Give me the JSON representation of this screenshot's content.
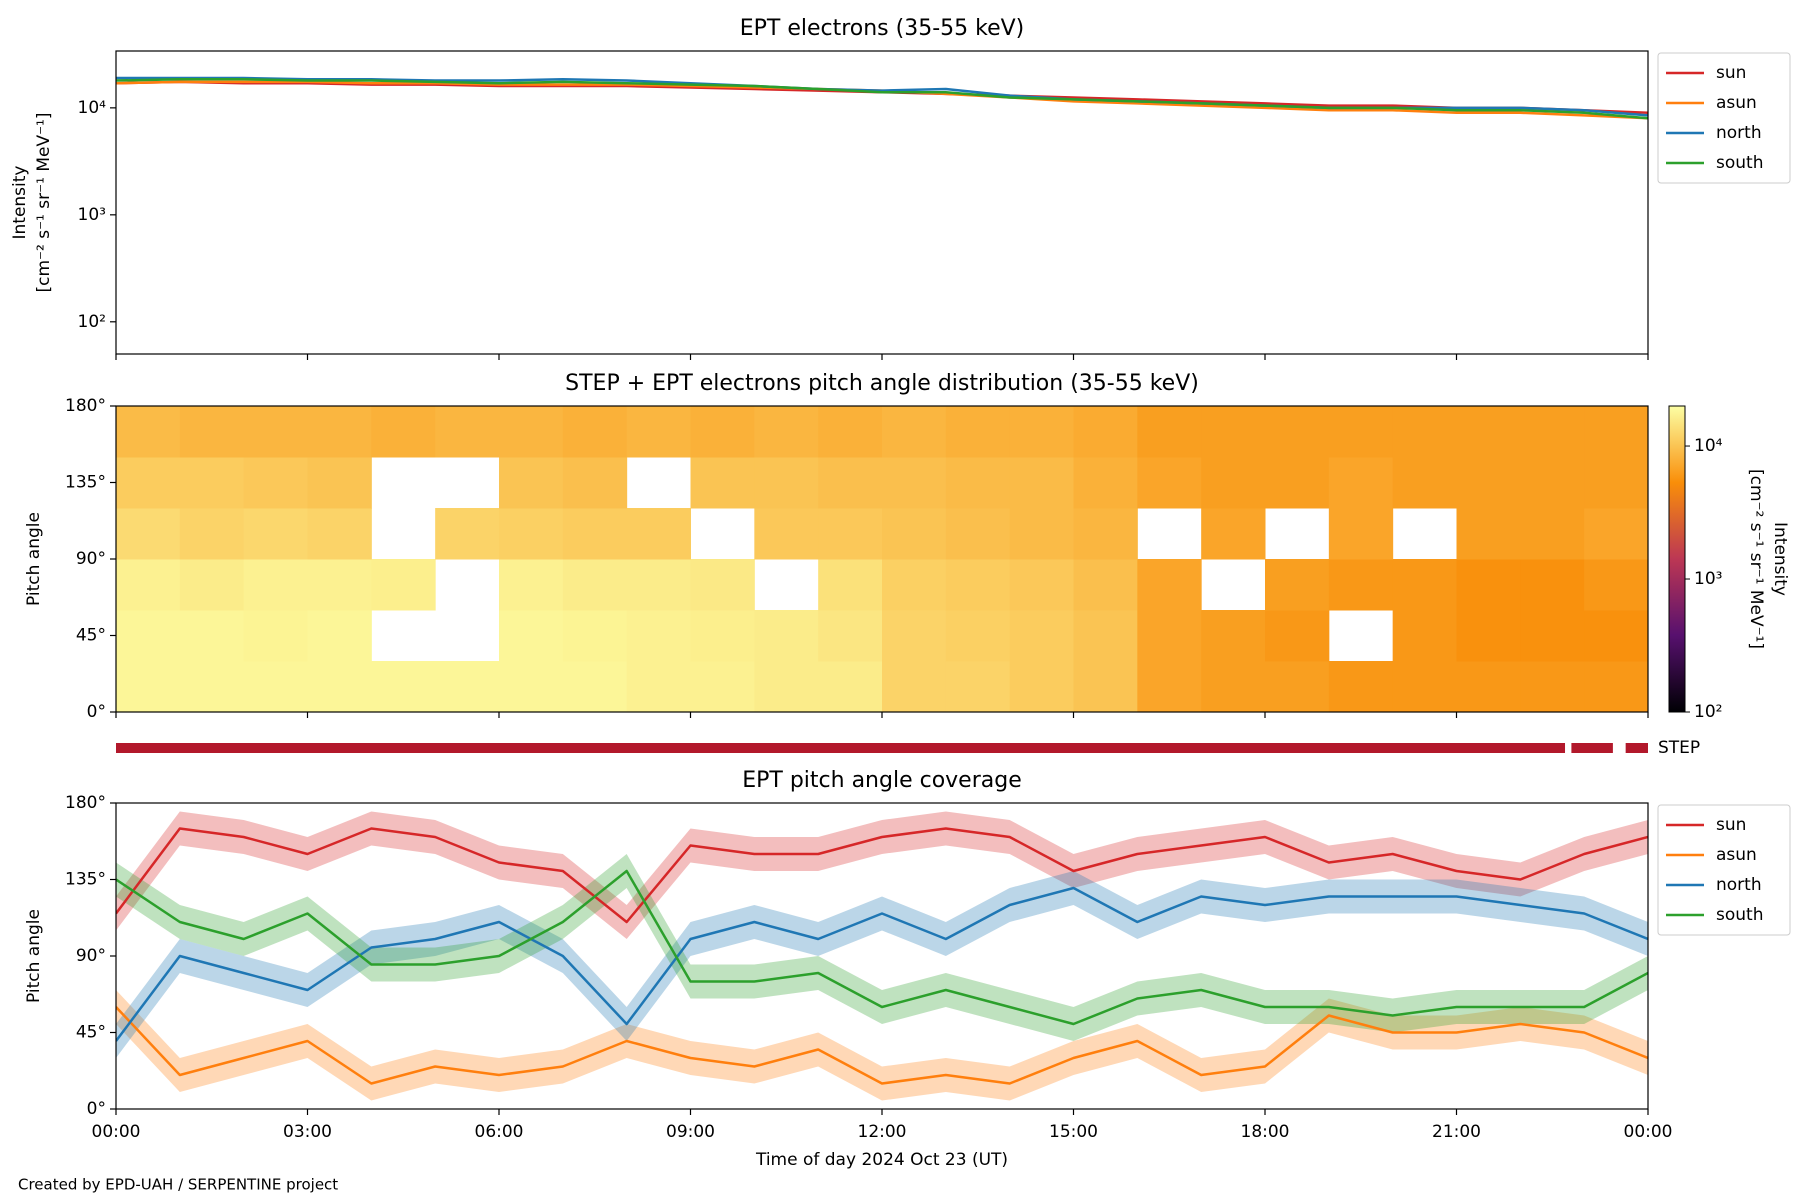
{
  "chart_data": [
    {
      "type": "line",
      "title": "EPT electrons (35-55 keV)",
      "ylabel": [
        "Intensity",
        "[cm⁻² s⁻¹ sr⁻¹ MeV⁻¹]"
      ],
      "log_y": true,
      "legend": "outside-right",
      "xlim": [
        0,
        24
      ],
      "xticks": [
        0,
        3,
        6,
        9,
        12,
        15,
        18,
        21,
        24
      ],
      "ylim": [
        50,
        34000
      ],
      "yticks": [
        {
          "value": 100,
          "label": "10²"
        },
        {
          "value": 1000,
          "label": "10³"
        },
        {
          "value": 10000,
          "label": "10⁴"
        }
      ],
      "x": [
        0,
        1,
        2,
        3,
        4,
        5,
        6,
        7,
        8,
        9,
        10,
        11,
        12,
        13,
        14,
        15,
        16,
        17,
        18,
        19,
        20,
        21,
        22,
        23,
        24
      ],
      "series": [
        {
          "name": "sun",
          "color": "#d62728",
          "values": [
            17000,
            17500,
            17000,
            17000,
            16500,
            16500,
            16000,
            16000,
            16000,
            15500,
            15000,
            14500,
            14000,
            13500,
            13000,
            12500,
            12000,
            11500,
            11000,
            10500,
            10500,
            10000,
            10000,
            9500,
            9000
          ]
        },
        {
          "name": "asun",
          "color": "#ff7f0e",
          "values": [
            17000,
            17500,
            17500,
            17500,
            17000,
            17000,
            16500,
            16500,
            16500,
            16000,
            15500,
            15000,
            14500,
            13500,
            12500,
            11500,
            11000,
            10500,
            10000,
            9500,
            9500,
            9000,
            9000,
            8500,
            8000
          ]
        },
        {
          "name": "north",
          "color": "#1f77b4",
          "values": [
            19000,
            19000,
            19000,
            18500,
            18500,
            18000,
            18000,
            18500,
            18000,
            17000,
            16000,
            15000,
            14500,
            15000,
            13000,
            12000,
            11500,
            11000,
            10500,
            10000,
            10000,
            10000,
            10000,
            9500,
            8500
          ]
        },
        {
          "name": "south",
          "color": "#2ca02c",
          "values": [
            18000,
            18500,
            18500,
            18000,
            18000,
            17500,
            17000,
            17500,
            17000,
            16500,
            16000,
            15000,
            14000,
            14000,
            12500,
            12000,
            11500,
            11000,
            10500,
            10000,
            10000,
            9500,
            9500,
            9000,
            8000
          ]
        }
      ]
    },
    {
      "type": "heatmap",
      "title": "STEP + EPT electrons pitch angle distribution (35-55 keV)",
      "ylabel": [
        "Pitch angle"
      ],
      "xlim": [
        0,
        24
      ],
      "xticks": [
        0,
        3,
        6,
        9,
        12,
        15,
        18,
        21,
        24
      ],
      "ylim": [
        0,
        180
      ],
      "yticks": [
        {
          "value": 0,
          "label": "0°"
        },
        {
          "value": 45,
          "label": "45°"
        },
        {
          "value": 90,
          "label": "90°"
        },
        {
          "value": 135,
          "label": "135°"
        },
        {
          "value": 180,
          "label": "180°"
        }
      ],
      "xbins": [
        0,
        1,
        2,
        3,
        4,
        5,
        6,
        7,
        8,
        9,
        10,
        11,
        12,
        13,
        14,
        15,
        16,
        17,
        18,
        19,
        20,
        21,
        22,
        23,
        24
      ],
      "ybins": [
        0,
        30,
        60,
        90,
        120,
        150,
        180
      ],
      "colormap": "inferno",
      "clim": [
        100,
        20000
      ],
      "colorbar_label": [
        "Intensity",
        "[cm⁻² s⁻¹ sr⁻¹ MeV⁻¹]"
      ],
      "colorbar_ticks": [
        {
          "value": 100,
          "label": "10²"
        },
        {
          "value": 1000,
          "label": "10³"
        },
        {
          "value": 10000,
          "label": "10⁴"
        }
      ],
      "values": [
        [
          18000,
          18000,
          18000,
          18000,
          18000,
          18000,
          18000,
          18000,
          17000,
          17000,
          16000,
          16000,
          12000,
          12000,
          11000,
          10000,
          7000,
          6500,
          6500,
          6000,
          6000,
          6000,
          6000,
          6000
        ],
        [
          18000,
          18000,
          17500,
          18000,
          null,
          null,
          18000,
          17500,
          17000,
          16500,
          16000,
          15000,
          12000,
          11500,
          11000,
          10000,
          7000,
          6500,
          6000,
          null,
          6000,
          5500,
          5500,
          5500
        ],
        [
          17000,
          16000,
          17000,
          17000,
          16500,
          null,
          17000,
          16000,
          16000,
          15500,
          null,
          14000,
          11500,
          11000,
          10500,
          9500,
          7000,
          null,
          6500,
          6000,
          6000,
          5500,
          5500,
          6000
        ],
        [
          13000,
          12000,
          12500,
          12000,
          null,
          12000,
          11500,
          11000,
          11000,
          null,
          10500,
          10500,
          10000,
          9500,
          9000,
          8500,
          null,
          7000,
          null,
          7000,
          null,
          6500,
          6500,
          7000
        ],
        [
          11000,
          11000,
          10500,
          10000,
          null,
          null,
          10000,
          9500,
          null,
          10000,
          10000,
          9500,
          9500,
          9000,
          9000,
          8000,
          7000,
          6500,
          6500,
          7000,
          6500,
          6500,
          6500,
          6500
        ],
        [
          9000,
          8500,
          8500,
          8500,
          8000,
          8500,
          8500,
          8000,
          8500,
          8000,
          8500,
          8000,
          8500,
          8000,
          8000,
          7500,
          6500,
          6500,
          6500,
          6500,
          6500,
          6500,
          6500,
          6500
        ]
      ],
      "coverage": {
        "label": "STEP",
        "color": "#b2182b",
        "segments": [
          [
            0,
            22.7
          ],
          [
            22.8,
            23.45
          ],
          [
            23.65,
            24
          ]
        ]
      }
    },
    {
      "type": "line",
      "title": "EPT pitch angle coverage",
      "ylabel": [
        "Pitch angle"
      ],
      "xlabel": "Time of day 2024 Oct 23 (UT)",
      "legend": "outside-right",
      "xlim": [
        0,
        24
      ],
      "xticks": [
        {
          "value": 0,
          "label": "00:00"
        },
        {
          "value": 3,
          "label": "03:00"
        },
        {
          "value": 6,
          "label": "06:00"
        },
        {
          "value": 9,
          "label": "09:00"
        },
        {
          "value": 12,
          "label": "12:00"
        },
        {
          "value": 15,
          "label": "15:00"
        },
        {
          "value": 18,
          "label": "18:00"
        },
        {
          "value": 21,
          "label": "21:00"
        },
        {
          "value": 24,
          "label": "00:00"
        }
      ],
      "ylim": [
        0,
        180
      ],
      "yticks": [
        {
          "value": 0,
          "label": "0°"
        },
        {
          "value": 45,
          "label": "45°"
        },
        {
          "value": 90,
          "label": "90°"
        },
        {
          "value": 135,
          "label": "135°"
        },
        {
          "value": 180,
          "label": "180°"
        }
      ],
      "x": [
        0,
        1,
        2,
        3,
        4,
        5,
        6,
        7,
        8,
        9,
        10,
        11,
        12,
        13,
        14,
        15,
        16,
        17,
        18,
        19,
        20,
        21,
        22,
        23,
        24
      ],
      "series": [
        {
          "name": "sun",
          "color": "#d62728",
          "band": 10,
          "values": [
            115,
            165,
            160,
            150,
            165,
            160,
            145,
            140,
            110,
            155,
            150,
            150,
            160,
            165,
            160,
            140,
            150,
            155,
            160,
            145,
            150,
            140,
            135,
            150,
            160
          ]
        },
        {
          "name": "asun",
          "color": "#ff7f0e",
          "band": 10,
          "values": [
            60,
            20,
            30,
            40,
            15,
            25,
            20,
            25,
            40,
            30,
            25,
            35,
            15,
            20,
            15,
            30,
            40,
            20,
            25,
            55,
            45,
            45,
            50,
            45,
            30
          ]
        },
        {
          "name": "north",
          "color": "#1f77b4",
          "band": 10,
          "values": [
            40,
            90,
            80,
            70,
            95,
            100,
            110,
            90,
            50,
            100,
            110,
            100,
            115,
            100,
            120,
            130,
            110,
            125,
            120,
            125,
            125,
            125,
            120,
            115,
            100
          ]
        },
        {
          "name": "south",
          "color": "#2ca02c",
          "band": 10,
          "values": [
            135,
            110,
            100,
            115,
            85,
            85,
            90,
            110,
            140,
            75,
            75,
            80,
            60,
            70,
            60,
            50,
            65,
            70,
            60,
            60,
            55,
            60,
            60,
            60,
            80
          ]
        }
      ]
    }
  ],
  "footer": "Created by EPD-UAH / SERPENTINE project"
}
